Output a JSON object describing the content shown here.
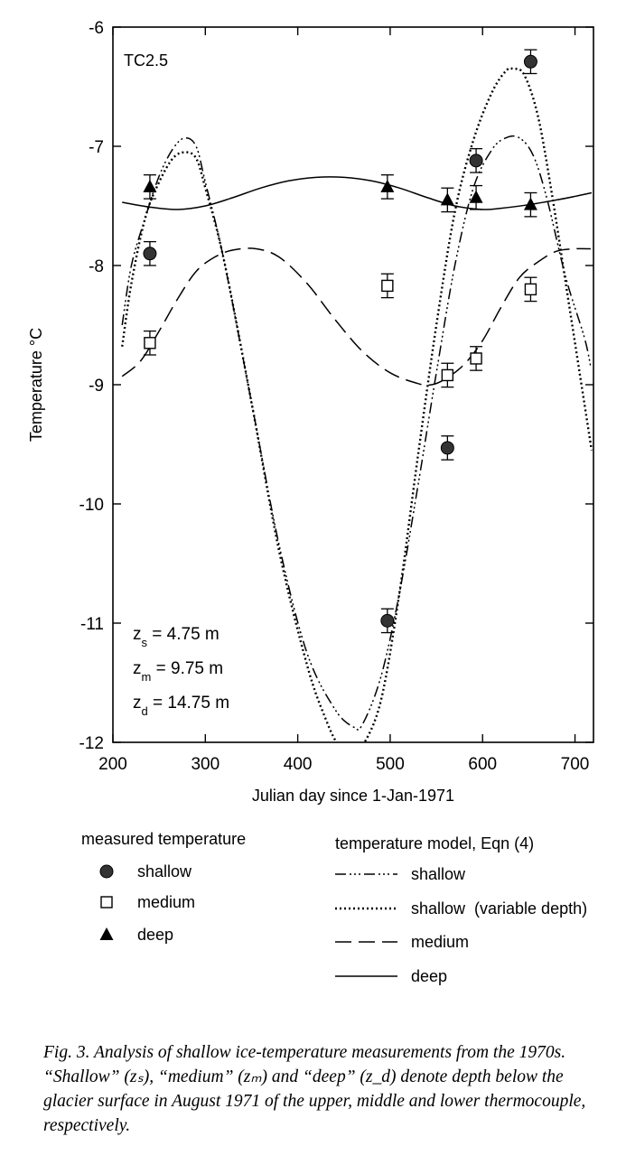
{
  "chart_data": {
    "type": "line",
    "panel_label": "TC2.5",
    "xlabel": "Julian day since 1-Jan-1971",
    "ylabel": "Temperature  °C",
    "xlim": [
      200,
      720
    ],
    "ylim": [
      -12,
      -6
    ],
    "x_ticks": [
      200,
      300,
      400,
      500,
      600,
      700
    ],
    "y_ticks": [
      -12,
      -11,
      -10,
      -9,
      -8,
      -7,
      -6
    ],
    "grid": false,
    "depth_annotations": [
      {
        "sym": "z",
        "sub": "s",
        "rest": " = 4.75 m"
      },
      {
        "sym": "z",
        "sub": "m",
        "rest": " = 9.75 m"
      },
      {
        "sym": "z",
        "sub": "d",
        "rest": " = 14.75 m"
      }
    ],
    "measured": [
      {
        "name": "shallow",
        "marker": "circle",
        "color": "#333333",
        "points": [
          {
            "x": 240,
            "y": -7.9,
            "err": 0.1
          },
          {
            "x": 497,
            "y": -10.98,
            "err": 0.1
          },
          {
            "x": 562,
            "y": -9.53,
            "err": 0.1
          },
          {
            "x": 593,
            "y": -7.12,
            "err": 0.1
          },
          {
            "x": 652,
            "y": -6.29,
            "err": 0.1
          }
        ]
      },
      {
        "name": "medium",
        "marker": "square",
        "color": "#000000",
        "points": [
          {
            "x": 240,
            "y": -8.65,
            "err": 0.1
          },
          {
            "x": 497,
            "y": -8.17,
            "err": 0.1
          },
          {
            "x": 562,
            "y": -8.92,
            "err": 0.1
          },
          {
            "x": 593,
            "y": -8.78,
            "err": 0.1
          },
          {
            "x": 652,
            "y": -8.2,
            "err": 0.1
          }
        ]
      },
      {
        "name": "deep",
        "marker": "triangle",
        "color": "#000000",
        "points": [
          {
            "x": 240,
            "y": -7.34,
            "err": 0.1
          },
          {
            "x": 497,
            "y": -7.34,
            "err": 0.1
          },
          {
            "x": 562,
            "y": -7.45,
            "err": 0.1
          },
          {
            "x": 593,
            "y": -7.43,
            "err": 0.1
          },
          {
            "x": 652,
            "y": -7.49,
            "err": 0.1
          }
        ]
      }
    ],
    "model": [
      {
        "name": "shallow",
        "dash": "12 4 2 3 2 3 2 4",
        "points": [
          [
            210,
            -8.5
          ],
          [
            220,
            -8.0
          ],
          [
            235,
            -7.6
          ],
          [
            250,
            -7.25
          ],
          [
            265,
            -7.02
          ],
          [
            278,
            -6.93
          ],
          [
            290,
            -7.0
          ],
          [
            300,
            -7.3
          ],
          [
            320,
            -7.95
          ],
          [
            350,
            -9.15
          ],
          [
            380,
            -10.35
          ],
          [
            410,
            -11.25
          ],
          [
            440,
            -11.72
          ],
          [
            460,
            -11.87
          ],
          [
            470,
            -11.85
          ],
          [
            490,
            -11.45
          ],
          [
            510,
            -10.75
          ],
          [
            530,
            -9.85
          ],
          [
            550,
            -8.9
          ],
          [
            570,
            -8.0
          ],
          [
            590,
            -7.35
          ],
          [
            610,
            -7.03
          ],
          [
            625,
            -6.93
          ],
          [
            640,
            -6.93
          ],
          [
            655,
            -7.08
          ],
          [
            670,
            -7.45
          ],
          [
            690,
            -8.1
          ],
          [
            710,
            -8.6
          ],
          [
            717,
            -8.85
          ]
        ]
      },
      {
        "name": "shallow (variable depth)",
        "dash": "2 3",
        "points": [
          [
            210,
            -8.68
          ],
          [
            220,
            -8.15
          ],
          [
            235,
            -7.6
          ],
          [
            250,
            -7.3
          ],
          [
            265,
            -7.1
          ],
          [
            278,
            -7.05
          ],
          [
            290,
            -7.1
          ],
          [
            300,
            -7.35
          ],
          [
            320,
            -7.95
          ],
          [
            350,
            -9.15
          ],
          [
            380,
            -10.4
          ],
          [
            410,
            -11.35
          ],
          [
            430,
            -11.8
          ],
          [
            445,
            -12.03
          ],
          [
            460,
            -12.05
          ],
          [
            470,
            -12.03
          ],
          [
            490,
            -11.65
          ],
          [
            510,
            -10.75
          ],
          [
            530,
            -9.6
          ],
          [
            550,
            -8.5
          ],
          [
            570,
            -7.55
          ],
          [
            590,
            -6.95
          ],
          [
            610,
            -6.55
          ],
          [
            625,
            -6.37
          ],
          [
            633,
            -6.35
          ],
          [
            645,
            -6.4
          ],
          [
            660,
            -6.75
          ],
          [
            675,
            -7.4
          ],
          [
            690,
            -8.15
          ],
          [
            705,
            -8.9
          ],
          [
            718,
            -9.55
          ]
        ]
      },
      {
        "name": "medium",
        "dash": "18 8",
        "points": [
          [
            210,
            -8.93
          ],
          [
            230,
            -8.8
          ],
          [
            250,
            -8.55
          ],
          [
            270,
            -8.28
          ],
          [
            290,
            -8.05
          ],
          [
            310,
            -7.93
          ],
          [
            330,
            -7.87
          ],
          [
            355,
            -7.86
          ],
          [
            380,
            -7.93
          ],
          [
            410,
            -8.15
          ],
          [
            440,
            -8.45
          ],
          [
            470,
            -8.72
          ],
          [
            500,
            -8.9
          ],
          [
            530,
            -8.99
          ],
          [
            545,
            -9.0
          ],
          [
            560,
            -8.95
          ],
          [
            580,
            -8.83
          ],
          [
            600,
            -8.63
          ],
          [
            620,
            -8.35
          ],
          [
            640,
            -8.1
          ],
          [
            660,
            -7.97
          ],
          [
            680,
            -7.88
          ],
          [
            700,
            -7.86
          ],
          [
            717,
            -7.86
          ]
        ]
      },
      {
        "name": "deep",
        "dash": "",
        "points": [
          [
            210,
            -7.47
          ],
          [
            240,
            -7.51
          ],
          [
            270,
            -7.53
          ],
          [
            300,
            -7.5
          ],
          [
            330,
            -7.43
          ],
          [
            360,
            -7.35
          ],
          [
            390,
            -7.29
          ],
          [
            420,
            -7.26
          ],
          [
            450,
            -7.26
          ],
          [
            480,
            -7.29
          ],
          [
            510,
            -7.35
          ],
          [
            540,
            -7.43
          ],
          [
            570,
            -7.5
          ],
          [
            600,
            -7.53
          ],
          [
            620,
            -7.52
          ],
          [
            650,
            -7.49
          ],
          [
            680,
            -7.45
          ],
          [
            700,
            -7.42
          ],
          [
            718,
            -7.39
          ]
        ]
      }
    ]
  },
  "legend": {
    "measured_title": "measured temperature",
    "model_title": "temperature model, Eqn (4)",
    "measured_items": [
      "shallow",
      "medium",
      "deep"
    ],
    "model_items": [
      "shallow",
      "shallow  (variable depth)",
      "medium",
      "deep"
    ]
  },
  "caption": "Fig. 3. Analysis of shallow ice-temperature measurements from the 1970s. “Shallow” (zₛ), “medium” (zₘ) and “deep” (z_d) denote depth below the glacier surface in August 1971 of the upper, middle and lower thermocouple, respectively."
}
